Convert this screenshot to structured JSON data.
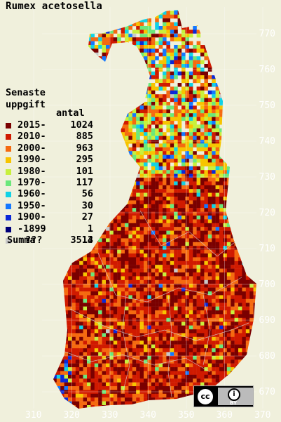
{
  "title": "Rumex acetosella",
  "legend": {
    "heading_line1": "Senaste",
    "heading_line2": "uppgift",
    "count_header": "antal",
    "items": [
      {
        "label": "2015-",
        "count": "1024",
        "color": "#7a0000"
      },
      {
        "label": "2010-",
        "count": "885",
        "color": "#d01a00"
      },
      {
        "label": "2000-",
        "count": "963",
        "color": "#f56a10"
      },
      {
        "label": "1990-",
        "count": "295",
        "color": "#f7c400"
      },
      {
        "label": "1980-",
        "count": "101",
        "color": "#c8f03c"
      },
      {
        "label": "1970-",
        "count": "117",
        "color": "#6be87a"
      },
      {
        "label": "1960-",
        "count": "56",
        "color": "#10d2e6"
      },
      {
        "label": "1950-",
        "count": "30",
        "color": "#1478ff"
      },
      {
        "label": "1900-",
        "count": "27",
        "color": "#0a28d8"
      },
      {
        "label": "-1899",
        "count": "1",
        "color": "#00007a"
      },
      {
        "label": "???",
        "count": "14",
        "color": "#c8c8c8"
      }
    ],
    "summa_label": "Summa",
    "summa_count": "3513"
  },
  "y_axis_labels": [
    "770",
    "760",
    "750",
    "740",
    "730",
    "720",
    "710",
    "700",
    "690",
    "680",
    "670"
  ],
  "x_axis_labels": [
    "310",
    "320",
    "330",
    "340",
    "350",
    "360",
    "370"
  ],
  "license_badge": {
    "cc": "cc",
    "by": "BY"
  }
}
